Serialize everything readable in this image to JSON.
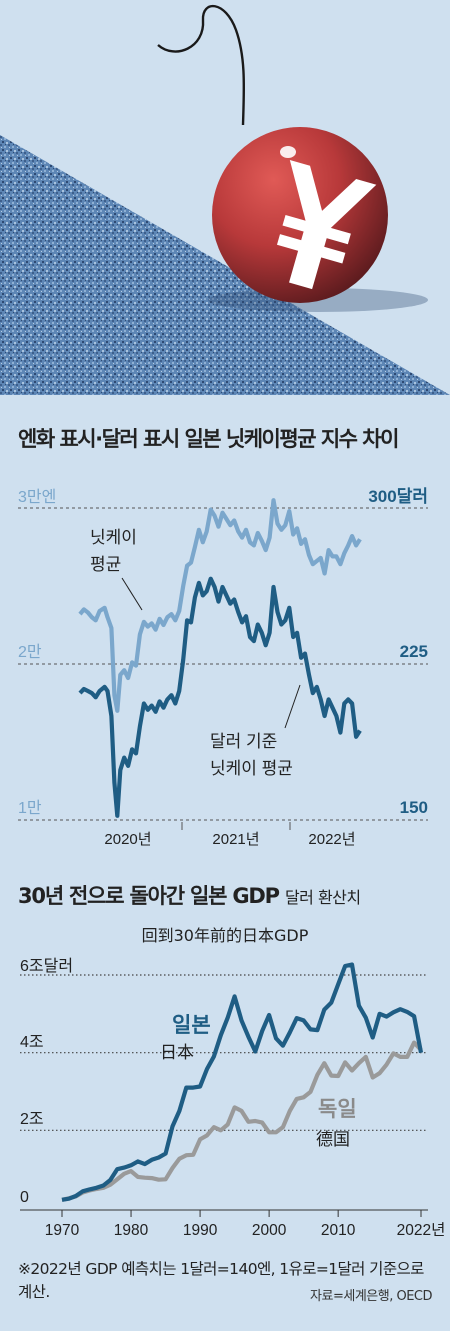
{
  "chart_data": [
    {
      "type": "line",
      "title": "엔화 표시·달러 표시 일본 닛케이평균 지수 차이",
      "left_axis": {
        "ticks": [
          "3만엔",
          "2만",
          "1만"
        ],
        "values": [
          30000,
          20000,
          10000
        ]
      },
      "right_axis": {
        "ticks": [
          "300달러",
          "225",
          "150"
        ],
        "values": [
          300,
          225,
          150
        ]
      },
      "x_ticks": [
        "2020년",
        "2021년",
        "2022년"
      ],
      "grid": "dashed",
      "series": [
        {
          "name": "닛케이 평균",
          "axis": "left",
          "color": "#7ba7cc",
          "x": [
            2019.75,
            2019.79,
            2019.83,
            2019.87,
            2019.91,
            2019.95,
            2020.0,
            2020.03,
            2020.07,
            2020.1,
            2020.13,
            2020.16,
            2020.2,
            2020.24,
            2020.28,
            2020.32,
            2020.36,
            2020.4,
            2020.44,
            2020.48,
            2020.52,
            2020.56,
            2020.6,
            2020.64,
            2020.68,
            2020.72,
            2020.76,
            2020.8,
            2020.84,
            2020.88,
            2020.92,
            2020.96,
            2021.0,
            2021.04,
            2021.08,
            2021.12,
            2021.16,
            2021.2,
            2021.24,
            2021.28,
            2021.32,
            2021.36,
            2021.4,
            2021.44,
            2021.48,
            2021.52,
            2021.56,
            2021.6,
            2021.64,
            2021.68,
            2021.72,
            2021.76,
            2021.8,
            2021.84,
            2021.88,
            2021.92,
            2021.96,
            2022.0,
            2022.04,
            2022.08,
            2022.12,
            2022.16,
            2022.2,
            2022.24,
            2022.28,
            2022.32,
            2022.36,
            2022.4,
            2022.44,
            2022.48,
            2022.52,
            2022.56,
            2022.6
          ],
          "values": [
            23200,
            23500,
            23300,
            23000,
            22800,
            23400,
            23600,
            23000,
            22300,
            18000,
            17000,
            19300,
            19600,
            19100,
            20100,
            19900,
            21900,
            22700,
            22400,
            22600,
            22200,
            22900,
            22500,
            23000,
            23200,
            22800,
            23400,
            25000,
            26300,
            26500,
            27500,
            28600,
            27800,
            28500,
            29900,
            29500,
            28800,
            29700,
            29300,
            28900,
            29200,
            28500,
            28100,
            28600,
            27800,
            27600,
            28400,
            27900,
            27300,
            28100,
            30500,
            29000,
            28600,
            28900,
            29800,
            28300,
            28700,
            27700,
            28000,
            27000,
            26400,
            26600,
            26800,
            25800,
            27300,
            26900,
            26900,
            26400,
            27100,
            27600,
            28200,
            27600,
            28000
          ]
        },
        {
          "name": "달러 기준 닛케이 평균",
          "axis": "right",
          "color": "#1f5d84",
          "x": [
            2019.75,
            2019.79,
            2019.83,
            2019.87,
            2019.91,
            2019.95,
            2020.0,
            2020.03,
            2020.07,
            2020.1,
            2020.13,
            2020.16,
            2020.2,
            2020.24,
            2020.28,
            2020.32,
            2020.36,
            2020.4,
            2020.44,
            2020.48,
            2020.52,
            2020.56,
            2020.6,
            2020.64,
            2020.68,
            2020.72,
            2020.76,
            2020.8,
            2020.84,
            2020.88,
            2020.92,
            2020.96,
            2021.0,
            2021.04,
            2021.08,
            2021.12,
            2021.16,
            2021.2,
            2021.24,
            2021.28,
            2021.32,
            2021.36,
            2021.4,
            2021.44,
            2021.48,
            2021.52,
            2021.56,
            2021.6,
            2021.64,
            2021.68,
            2021.72,
            2021.76,
            2021.8,
            2021.84,
            2021.88,
            2021.92,
            2021.96,
            2022.0,
            2022.04,
            2022.08,
            2022.12,
            2022.16,
            2022.2,
            2022.24,
            2022.28,
            2022.32,
            2022.36,
            2022.4,
            2022.44,
            2022.48,
            2022.52,
            2022.56,
            2022.6
          ],
          "values": [
            211,
            213,
            212,
            211,
            209,
            212,
            214,
            212,
            200,
            168,
            152,
            174,
            180,
            176,
            184,
            182,
            195,
            206,
            203,
            205,
            202,
            207,
            204,
            208,
            210,
            206,
            212,
            227,
            246,
            245,
            257,
            264,
            258,
            260,
            266,
            262,
            255,
            262,
            258,
            254,
            256,
            250,
            245,
            248,
            238,
            236,
            244,
            240,
            234,
            240,
            262,
            250,
            244,
            246,
            252,
            238,
            240,
            228,
            230,
            220,
            211,
            214,
            208,
            200,
            208,
            204,
            200,
            192,
            206,
            208,
            206,
            190,
            193
          ]
        }
      ],
      "annotations": [
        "닛케이 평균",
        "달러 기준 닛케이 평균"
      ]
    },
    {
      "type": "line",
      "title": "30년 전으로 돌아간 일본 GDP",
      "title_suffix": "달러 환산치",
      "subtitle": "回到30年前的日本GDP",
      "y_ticks": [
        "6조달러",
        "4조",
        "2조",
        "0"
      ],
      "y_values": [
        6,
        4,
        2,
        0
      ],
      "x_ticks": [
        "1970",
        "1980",
        "1990",
        "2000",
        "2010",
        "2022년"
      ],
      "grid": "dotted",
      "series": [
        {
          "name": "일본",
          "annotation_zh": "日本",
          "color": "#1f5d84",
          "x": [
            1970,
            1971,
            1972,
            1973,
            1974,
            1975,
            1976,
            1977,
            1978,
            1979,
            1980,
            1981,
            1982,
            1983,
            1984,
            1985,
            1986,
            1987,
            1988,
            1989,
            1990,
            1991,
            1992,
            1993,
            1994,
            1995,
            1996,
            1997,
            1998,
            1999,
            2000,
            2001,
            2002,
            2003,
            2004,
            2005,
            2006,
            2007,
            2008,
            2009,
            2010,
            2011,
            2012,
            2013,
            2014,
            2015,
            2016,
            2017,
            2018,
            2019,
            2020,
            2021,
            2022
          ],
          "values": [
            0.21,
            0.24,
            0.31,
            0.43,
            0.48,
            0.52,
            0.58,
            0.72,
            1.0,
            1.04,
            1.1,
            1.2,
            1.13,
            1.24,
            1.3,
            1.4,
            2.1,
            2.5,
            3.1,
            3.1,
            3.13,
            3.58,
            3.9,
            4.45,
            4.9,
            5.45,
            4.83,
            4.41,
            4.03,
            4.56,
            4.97,
            4.37,
            4.18,
            4.52,
            4.89,
            4.83,
            4.6,
            4.58,
            5.11,
            5.29,
            5.76,
            6.23,
            6.27,
            5.21,
            4.9,
            4.39,
            5.0,
            4.93,
            5.04,
            5.12,
            5.05,
            4.94,
            4.0
          ]
        },
        {
          "name": "독일",
          "annotation_zh": "德国",
          "color": "#9a9a9a",
          "x": [
            1970,
            1971,
            1972,
            1973,
            1974,
            1975,
            1976,
            1977,
            1978,
            1979,
            1980,
            1981,
            1982,
            1983,
            1984,
            1985,
            1986,
            1987,
            1988,
            1989,
            1990,
            1991,
            1992,
            1993,
            1994,
            1995,
            1996,
            1997,
            1998,
            1999,
            2000,
            2001,
            2002,
            2003,
            2004,
            2005,
            2006,
            2007,
            2008,
            2009,
            2010,
            2011,
            2012,
            2013,
            2014,
            2015,
            2016,
            2017,
            2018,
            2019,
            2020,
            2021,
            2022
          ],
          "values": [
            0.21,
            0.25,
            0.3,
            0.4,
            0.45,
            0.49,
            0.52,
            0.6,
            0.74,
            0.88,
            0.95,
            0.8,
            0.78,
            0.77,
            0.73,
            0.74,
            1.03,
            1.27,
            1.36,
            1.37,
            1.77,
            1.87,
            2.08,
            2.0,
            2.15,
            2.59,
            2.5,
            2.22,
            2.24,
            2.2,
            1.95,
            1.95,
            2.08,
            2.5,
            2.81,
            2.85,
            2.99,
            3.43,
            3.73,
            3.41,
            3.4,
            3.75,
            3.54,
            3.73,
            3.89,
            3.36,
            3.47,
            3.69,
            3.98,
            3.89,
            3.89,
            4.26,
            4.07
          ]
        }
      ]
    }
  ],
  "footnote": "※2022년 GDP 예측치는 1달러=140엔, 1유로=1달러 기준으로 계산.",
  "source": "자료=세계은행, OECD",
  "hero": {
    "coin_symbol": "¥",
    "coin_color": "#b8393a",
    "slope_color": "#5d86b5"
  }
}
